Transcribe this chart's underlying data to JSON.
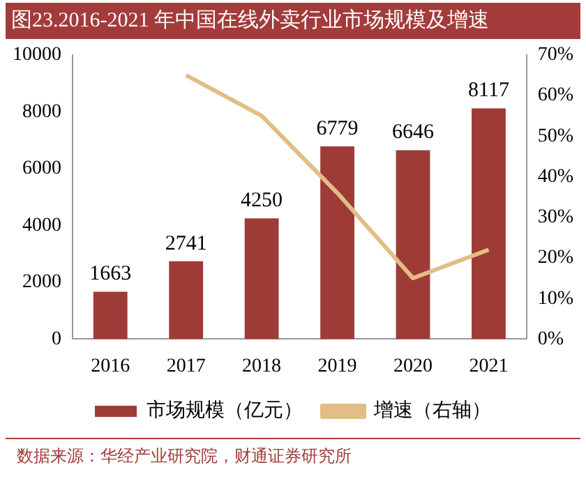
{
  "chart_data": {
    "type": "bar",
    "title": "图23.2016-2021 年中国在线外卖行业市场规模及增速",
    "categories": [
      "2016",
      "2017",
      "2018",
      "2019",
      "2020",
      "2021"
    ],
    "series": [
      {
        "name": "市场规模（亿元）",
        "color": "#9e3b37",
        "values": [
          1663,
          2741,
          4250,
          6779,
          6646,
          8117
        ]
      },
      {
        "name": "增速（右轴）",
        "type": "line",
        "axis": "y2",
        "color": "#e2bd86",
        "values": [
          null,
          65,
          55,
          36,
          15,
          22
        ]
      }
    ],
    "ylim": [
      0,
      10000
    ],
    "yticks": [
      0,
      2000,
      4000,
      6000,
      8000,
      10000
    ],
    "y2lim": [
      0,
      70
    ],
    "y2ticks": [
      {
        "value": 0,
        "label": "0%"
      },
      {
        "value": 10,
        "label": "10%"
      },
      {
        "value": 20,
        "label": "20%"
      },
      {
        "value": 30,
        "label": "30%"
      },
      {
        "value": 40,
        "label": "40%"
      },
      {
        "value": 50,
        "label": "50%"
      },
      {
        "value": 60,
        "label": "60%"
      },
      {
        "value": 70,
        "label": "70%"
      }
    ],
    "value_labels": [
      "1663",
      "2741",
      "4250",
      "6779",
      "6646",
      "8117"
    ],
    "grid": false,
    "legend": "bottom",
    "marker": "none",
    "line_style": "solid",
    "annotations": [
      "数据来源：华经产业研究院，财通证券研究所"
    ]
  }
}
